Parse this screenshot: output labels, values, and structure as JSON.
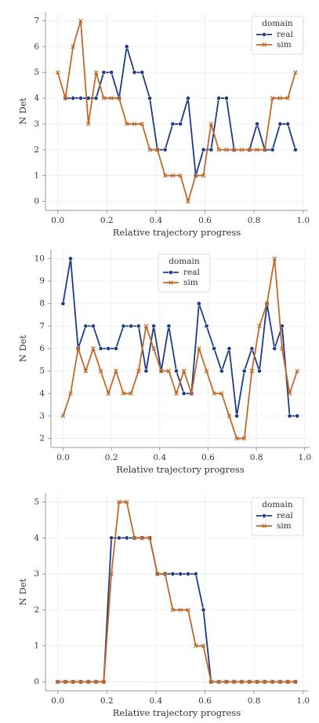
{
  "chart_data": [
    {
      "type": "line",
      "x_label": "Relative trajectory progress",
      "y_label": "N Det",
      "legend_title": "domain",
      "legend_loc": "upper right",
      "grid": true,
      "x": [
        0,
        0.03125,
        0.0625,
        0.09375,
        0.125,
        0.15625,
        0.1875,
        0.21875,
        0.25,
        0.28125,
        0.3125,
        0.34375,
        0.375,
        0.40625,
        0.4375,
        0.46875,
        0.5,
        0.53125,
        0.5625,
        0.59375,
        0.625,
        0.65625,
        0.6875,
        0.71875,
        0.75,
        0.78125,
        0.8125,
        0.84375,
        0.875,
        0.90625,
        0.9375,
        0.96875
      ],
      "series": [
        {
          "name": "real",
          "color": "#1f3b87",
          "marker": "o",
          "values": [
            null,
            4,
            4,
            4,
            4,
            4,
            5,
            5,
            4,
            6,
            5,
            5,
            4,
            2,
            2,
            3,
            3,
            4,
            1,
            2,
            2,
            4,
            4,
            2,
            null,
            2,
            3,
            2,
            2,
            3,
            3,
            2
          ]
        },
        {
          "name": "sim",
          "color": "#c0692a",
          "marker": "x",
          "values": [
            5,
            4,
            6,
            7,
            3,
            5,
            4,
            4,
            4,
            3,
            3,
            3,
            2,
            2,
            1,
            1,
            1,
            0,
            1,
            1,
            3,
            2,
            2,
            2,
            2,
            2,
            2,
            2,
            4,
            4,
            4,
            5
          ]
        }
      ],
      "xlim": [
        -0.05,
        1.02
      ],
      "ylim": [
        -0.35,
        7.35
      ],
      "xticks": [
        {
          "value": 0,
          "label": "0.0"
        },
        0.2,
        0.4,
        0.6,
        0.8,
        {
          "value": 1,
          "label": "1.0"
        }
      ],
      "yticks": [
        0,
        1,
        2,
        3,
        4,
        5,
        6,
        7
      ]
    },
    {
      "type": "line",
      "x_label": "Relative trajectory progress",
      "y_label": "N Det",
      "legend_title": "domain",
      "legend_loc": "upper center",
      "grid": true,
      "x": [
        0,
        0.03125,
        0.0625,
        0.09375,
        0.125,
        0.15625,
        0.1875,
        0.21875,
        0.25,
        0.28125,
        0.3125,
        0.34375,
        0.375,
        0.40625,
        0.4375,
        0.46875,
        0.5,
        0.53125,
        0.5625,
        0.59375,
        0.625,
        0.65625,
        0.6875,
        0.71875,
        0.75,
        0.78125,
        0.8125,
        0.84375,
        0.875,
        0.90625,
        0.9375,
        0.96875
      ],
      "series": [
        {
          "name": "real",
          "color": "#1f3b87",
          "marker": "o",
          "values": [
            8,
            10,
            6,
            7,
            7,
            6,
            6,
            6,
            7,
            7,
            7,
            5,
            7,
            5,
            7,
            5,
            4,
            4,
            8,
            7,
            6,
            5,
            6,
            3,
            5,
            6,
            5,
            8,
            6,
            7,
            3,
            3
          ]
        },
        {
          "name": "sim",
          "color": "#c0692a",
          "marker": "x",
          "values": [
            3,
            4,
            6,
            5,
            6,
            5,
            4,
            5,
            4,
            4,
            5,
            7,
            6,
            5,
            5,
            4,
            5,
            4,
            6,
            5,
            4,
            4,
            3,
            2,
            2,
            5,
            7,
            8,
            10,
            6,
            4,
            5
          ]
        }
      ],
      "xlim": [
        -0.05,
        1.02
      ],
      "ylim": [
        1.6,
        10.4
      ],
      "xticks": [
        {
          "value": 0,
          "label": "0.0"
        },
        0.2,
        0.4,
        0.6,
        0.8,
        {
          "value": 1,
          "label": "1.0"
        }
      ],
      "yticks": [
        2,
        3,
        4,
        5,
        6,
        7,
        8,
        9,
        10
      ]
    },
    {
      "type": "line",
      "x_label": "Relative trajectory progress",
      "y_label": "N Det",
      "legend_title": "domain",
      "legend_loc": "upper right",
      "grid": true,
      "x": [
        0,
        0.03125,
        0.0625,
        0.09375,
        0.125,
        0.15625,
        0.1875,
        0.21875,
        0.25,
        0.28125,
        0.3125,
        0.34375,
        0.375,
        0.40625,
        0.4375,
        0.46875,
        0.5,
        0.53125,
        0.5625,
        0.59375,
        0.625,
        0.65625,
        0.6875,
        0.71875,
        0.75,
        0.78125,
        0.8125,
        0.84375,
        0.875,
        0.90625,
        0.9375,
        0.96875
      ],
      "series": [
        {
          "name": "real",
          "color": "#1f3b87",
          "marker": "o",
          "values": [
            0,
            0,
            0,
            0,
            0,
            0,
            0,
            4,
            4,
            4,
            4,
            4,
            4,
            3,
            3,
            3,
            3,
            3,
            3,
            2,
            0,
            0,
            0,
            0,
            0,
            0,
            0,
            0,
            0,
            0,
            0,
            0
          ]
        },
        {
          "name": "sim",
          "color": "#c0692a",
          "marker": "x",
          "values": [
            0,
            0,
            0,
            0,
            0,
            0,
            0,
            3,
            5,
            5,
            4,
            4,
            4,
            3,
            3,
            2,
            2,
            2,
            1,
            1,
            0,
            0,
            0,
            0,
            0,
            0,
            0,
            0,
            0,
            0,
            0,
            0
          ]
        }
      ],
      "xlim": [
        -0.05,
        1.02
      ],
      "ylim": [
        -0.25,
        5.25
      ],
      "xticks": [
        {
          "value": 0,
          "label": "0.0"
        },
        0.2,
        0.4,
        0.6,
        0.8,
        {
          "value": 1,
          "label": "1.0"
        }
      ],
      "yticks": [
        0,
        1,
        2,
        3,
        4,
        5
      ]
    }
  ]
}
